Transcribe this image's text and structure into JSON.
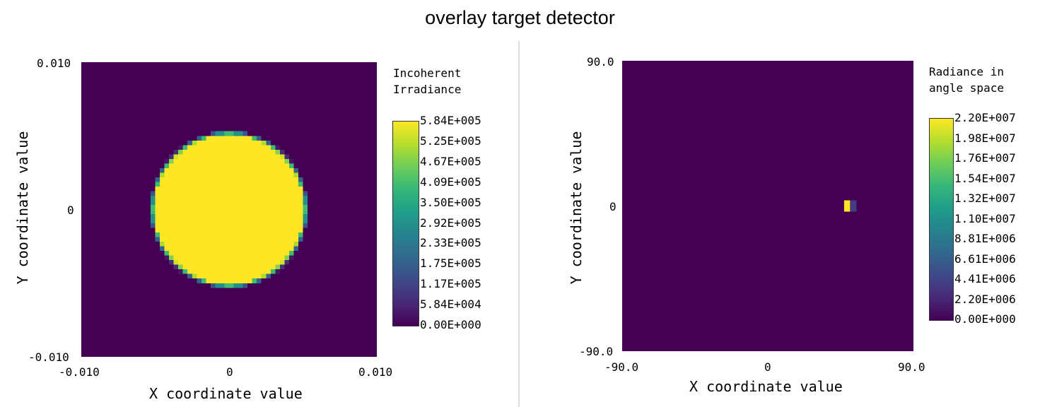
{
  "title": "overlay target detector",
  "chart_data": [
    {
      "type": "heatmap",
      "xlabel": "X coordinate value",
      "ylabel": "Y coordinate value",
      "xlim": [
        -0.01,
        0.01
      ],
      "ylim": [
        -0.01,
        0.01
      ],
      "xticks": [
        "-0.010",
        "0",
        "0.010"
      ],
      "yticks": [
        "0.010",
        "0",
        "-0.010"
      ],
      "colorbar_title": [
        "Incoherent",
        "Irradiance"
      ],
      "colorbar_ticks": [
        "5.84E+005",
        "5.25E+005",
        "4.67E+005",
        "4.09E+005",
        "3.50E+005",
        "2.92E+005",
        "2.33E+005",
        "1.75E+005",
        "1.17E+005",
        "5.84E+004",
        "0.00E+000"
      ],
      "colormap": "viridis",
      "zmin": 0,
      "zmax": 584000,
      "content": {
        "shape": "uniform disk",
        "center": [
          0,
          0
        ],
        "radius": 0.0052,
        "value": 584000,
        "background": 0
      }
    },
    {
      "type": "heatmap",
      "xlabel": "X coordinate value",
      "ylabel": "Y coordinate value",
      "xlim": [
        -90.0,
        90.0
      ],
      "ylim": [
        -90.0,
        90.0
      ],
      "xticks": [
        "-90.0",
        "0",
        "90.0"
      ],
      "yticks": [
        "90.0",
        "0",
        "-90.0"
      ],
      "colorbar_title": [
        "Radiance in",
        "angle space"
      ],
      "colorbar_ticks": [
        "2.20E+007",
        "1.98E+007",
        "1.76E+007",
        "1.54E+007",
        "1.32E+007",
        "1.10E+007",
        "8.81E+006",
        "6.61E+006",
        "4.41E+006",
        "2.20E+006",
        "0.00E+000"
      ],
      "colormap": "viridis",
      "zmin": 0,
      "zmax": 22000000,
      "points": [
        {
          "x": 49,
          "y": 0,
          "value": 22000000
        },
        {
          "x": 53,
          "y": 0,
          "value": 4000000
        }
      ]
    }
  ]
}
